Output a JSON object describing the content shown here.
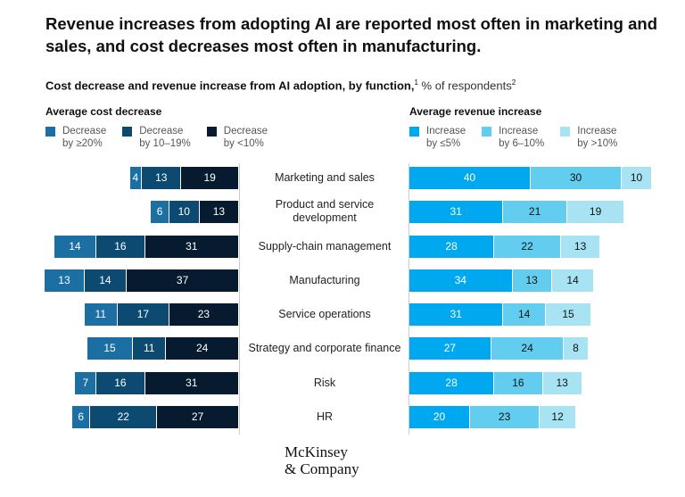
{
  "title": "Revenue increases from adopting AI are reported most often in marketing and sales, and cost decreases most often in manufacturing.",
  "subtitle": {
    "main": "Cost decrease and revenue increase from AI adoption, by function,",
    "sup1": "1",
    "unit": " % of respondents",
    "sup2": "2"
  },
  "logo": {
    "line1": "McKinsey",
    "line2": "& Company"
  },
  "chart_data": {
    "type": "bar",
    "orientation": "horizontal-stacked-diverging",
    "categories": [
      "Marketing and sales",
      "Product and service development",
      "Supply-chain management",
      "Manufacturing",
      "Service operations",
      "Strategy and corporate finance",
      "Risk",
      "HR"
    ],
    "panels": [
      {
        "title": "Average cost decrease",
        "direction": "left",
        "series": [
          {
            "name": "Decrease by ≥20%",
            "line1": "Decrease",
            "line2": "by ≥20%",
            "color": "#1b6fa2",
            "text_color": "#ffffff",
            "values": [
              4,
              6,
              14,
              13,
              11,
              15,
              7,
              6
            ]
          },
          {
            "name": "Decrease by 10–19%",
            "line1": "Decrease",
            "line2": "by 10–19%",
            "color": "#0c4a72",
            "text_color": "#ffffff",
            "values": [
              13,
              10,
              16,
              14,
              17,
              11,
              16,
              22
            ]
          },
          {
            "name": "Decrease by <10%",
            "line1": "Decrease",
            "line2": "by <10%",
            "color": "#061b2f",
            "text_color": "#ffffff",
            "values": [
              19,
              13,
              31,
              37,
              23,
              24,
              31,
              27
            ]
          }
        ]
      },
      {
        "title": "Average revenue increase",
        "direction": "right",
        "series": [
          {
            "name": "Increase by ≤5%",
            "line1": "Increase",
            "line2": "by ≤5%",
            "color": "#00a8f0",
            "text_color": "#ffffff",
            "values": [
              40,
              31,
              28,
              34,
              31,
              27,
              28,
              20
            ]
          },
          {
            "name": "Increase by 6–10%",
            "line1": "Increase",
            "line2": "by 6–10%",
            "color": "#62cdee",
            "text_color": "#111111",
            "values": [
              30,
              21,
              22,
              13,
              14,
              24,
              16,
              23
            ]
          },
          {
            "name": "Increase by >10%",
            "line1": "Increase",
            "line2": "by >10%",
            "color": "#a7e3f2",
            "text_color": "#111111",
            "values": [
              10,
              19,
              13,
              14,
              15,
              8,
              13,
              12
            ]
          }
        ]
      }
    ],
    "xlabel": "",
    "ylabel": "",
    "grid": false
  }
}
